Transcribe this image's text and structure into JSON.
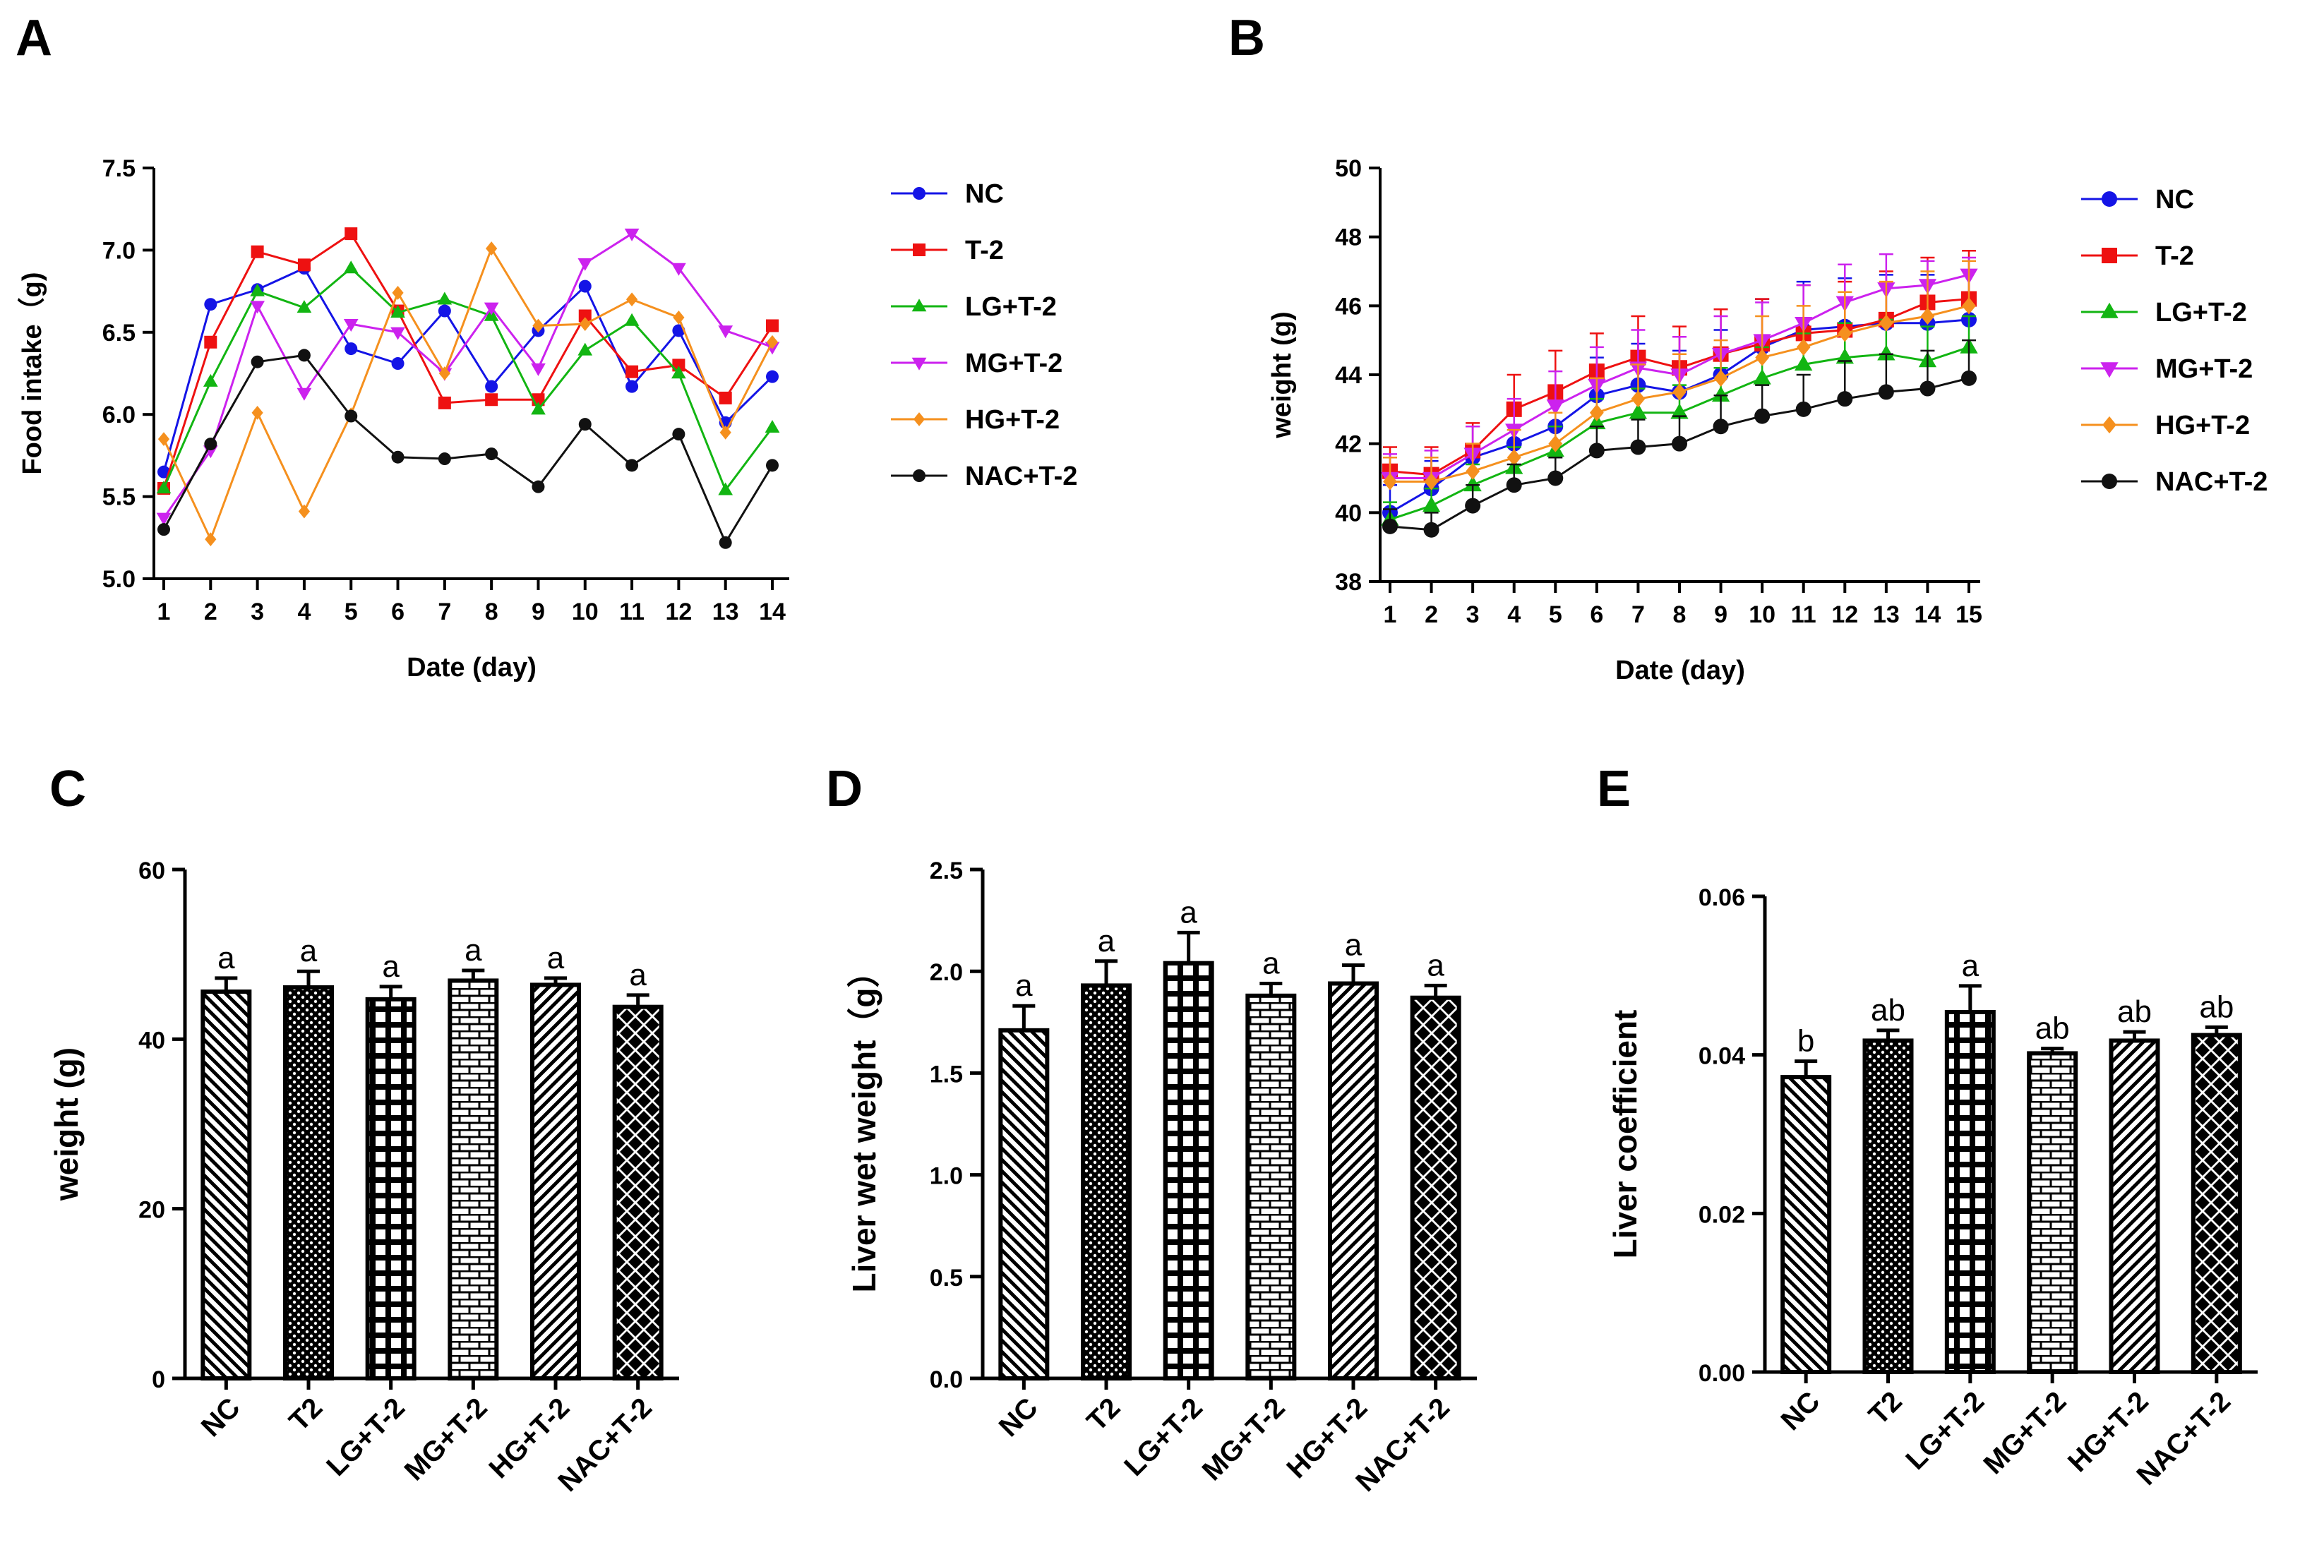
{
  "chart_data": [
    {
      "panel": "A",
      "type": "line",
      "xlabel": "Date (day)",
      "ylabel": "Food intake（g)",
      "ylim": [
        5.0,
        7.5
      ],
      "yticks": [
        "5.0",
        "5.5",
        "6.0",
        "6.5",
        "7.0",
        "7.5"
      ],
      "x": [
        1,
        2,
        3,
        4,
        5,
        6,
        7,
        8,
        9,
        10,
        11,
        12,
        13,
        14
      ],
      "series": [
        {
          "name": "NC",
          "color": "#1414e6",
          "marker": "circle",
          "values": [
            5.65,
            6.67,
            6.76,
            6.89,
            6.4,
            6.31,
            6.63,
            6.17,
            6.51,
            6.78,
            6.17,
            6.51,
            5.95,
            6.23
          ]
        },
        {
          "name": "T-2",
          "color": "#ee1111",
          "marker": "square",
          "values": [
            5.55,
            6.44,
            6.99,
            6.91,
            7.1,
            6.63,
            6.07,
            6.09,
            6.09,
            6.6,
            6.26,
            6.3,
            6.1,
            6.54
          ]
        },
        {
          "name": "LG+T-2",
          "color": "#12b512",
          "marker": "triangle-up",
          "values": [
            5.55,
            6.2,
            6.75,
            6.65,
            6.89,
            6.62,
            6.7,
            6.6,
            6.03,
            6.39,
            6.57,
            6.25,
            5.54,
            5.92
          ]
        },
        {
          "name": "MG+T-2",
          "color": "#cc22ee",
          "marker": "triangle-down",
          "values": [
            5.37,
            5.78,
            6.66,
            6.13,
            6.55,
            6.5,
            6.25,
            6.65,
            6.28,
            6.92,
            7.1,
            6.89,
            6.51,
            6.41
          ]
        },
        {
          "name": "HG+T-2",
          "color": "#f5901e",
          "marker": "diamond",
          "values": [
            5.85,
            5.24,
            6.01,
            5.41,
            6.0,
            6.74,
            6.25,
            7.01,
            6.54,
            6.55,
            6.7,
            6.59,
            5.89,
            6.44
          ]
        },
        {
          "name": "NAC+T-2",
          "color": "#111111",
          "marker": "circle",
          "values": [
            5.3,
            5.82,
            6.32,
            6.36,
            5.99,
            5.74,
            5.73,
            5.76,
            5.56,
            5.94,
            5.69,
            5.88,
            5.22,
            5.69
          ]
        }
      ]
    },
    {
      "panel": "B",
      "type": "line",
      "xlabel": "Date (day)",
      "ylabel": "weight (g)",
      "ylim": [
        38,
        50
      ],
      "yticks": [
        "38",
        "40",
        "42",
        "44",
        "46",
        "48",
        "50"
      ],
      "x": [
        1,
        2,
        3,
        4,
        5,
        6,
        7,
        8,
        9,
        10,
        11,
        12,
        13,
        14,
        15
      ],
      "series": [
        {
          "name": "NC",
          "color": "#1414e6",
          "marker": "circle",
          "values": [
            40.0,
            40.7,
            41.6,
            42.0,
            42.5,
            43.4,
            43.7,
            43.5,
            44.0,
            44.8,
            45.3,
            45.4,
            45.5,
            45.5,
            45.6
          ],
          "errors": [
            0.8,
            0.8,
            0.9,
            1.0,
            1.1,
            1.1,
            1.2,
            1.2,
            1.3,
            1.4,
            1.4,
            1.4,
            1.4,
            1.4,
            1.4
          ]
        },
        {
          "name": "T-2",
          "color": "#ee1111",
          "marker": "square",
          "values": [
            41.2,
            41.1,
            41.8,
            43.0,
            43.5,
            44.1,
            44.5,
            44.2,
            44.6,
            44.9,
            45.2,
            45.3,
            45.6,
            46.1,
            46.2
          ],
          "errors": [
            0.7,
            0.8,
            0.8,
            1.0,
            1.2,
            1.1,
            1.2,
            1.2,
            1.3,
            1.3,
            1.4,
            1.4,
            1.4,
            1.3,
            1.4
          ]
        },
        {
          "name": "LG+T-2",
          "color": "#12b512",
          "marker": "triangle-up",
          "values": [
            39.8,
            40.2,
            40.8,
            41.3,
            41.8,
            42.6,
            42.9,
            42.9,
            43.4,
            43.9,
            44.3,
            44.5,
            44.6,
            44.4,
            44.8
          ],
          "errors": [
            0.5,
            0.5,
            0.6,
            0.6,
            0.7,
            0.7,
            0.7,
            0.8,
            0.8,
            0.9,
            0.9,
            1.0,
            1.0,
            1.0,
            0.9
          ]
        },
        {
          "name": "MG+T-2",
          "color": "#cc22ee",
          "marker": "triangle-down",
          "values": [
            41.0,
            41.0,
            41.7,
            42.4,
            43.1,
            43.7,
            44.2,
            44.0,
            44.6,
            45.0,
            45.5,
            46.1,
            46.5,
            46.6,
            46.9
          ],
          "errors": [
            0.7,
            0.8,
            0.8,
            0.9,
            1.0,
            1.1,
            1.1,
            1.1,
            1.1,
            1.1,
            1.1,
            1.1,
            1.0,
            0.7,
            0.5
          ]
        },
        {
          "name": "HG+T-2",
          "color": "#f5901e",
          "marker": "diamond",
          "values": [
            40.9,
            40.9,
            41.2,
            41.6,
            42.0,
            42.9,
            43.3,
            43.5,
            43.9,
            44.5,
            44.8,
            45.2,
            45.5,
            45.7,
            46.0
          ],
          "errors": [
            0.7,
            0.7,
            0.8,
            0.8,
            0.9,
            1.0,
            1.0,
            1.1,
            1.1,
            1.2,
            1.2,
            1.2,
            1.2,
            1.3,
            1.3
          ]
        },
        {
          "name": "NAC+T-2",
          "color": "#111111",
          "marker": "circle",
          "values": [
            39.6,
            39.5,
            40.2,
            40.8,
            41.0,
            41.8,
            41.9,
            42.0,
            42.5,
            42.8,
            43.0,
            43.3,
            43.5,
            43.6,
            43.9
          ],
          "errors": [
            0.5,
            0.5,
            0.6,
            0.6,
            0.6,
            0.7,
            0.8,
            0.8,
            0.9,
            0.9,
            1.0,
            1.1,
            1.1,
            1.1,
            1.1
          ]
        }
      ]
    },
    {
      "panel": "C",
      "type": "bar",
      "ylabel": "weight (g)",
      "ylim": [
        0,
        60
      ],
      "yticks": [
        "0",
        "20",
        "40",
        "60"
      ],
      "categories": [
        "NC",
        "T2",
        "LG+T-2",
        "MG+T-2",
        "HG+T-2",
        "NAC+T-2"
      ],
      "values": [
        45.6,
        46.1,
        44.7,
        46.9,
        46.4,
        43.8
      ],
      "errors": [
        1.6,
        1.9,
        1.5,
        1.2,
        0.8,
        1.4
      ],
      "labels": [
        "a",
        "a",
        "a",
        "a",
        "a",
        "a"
      ]
    },
    {
      "panel": "D",
      "type": "bar",
      "ylabel": "Liver wet weight（g）",
      "ylim": [
        0.0,
        2.5
      ],
      "yticks": [
        "0.0",
        "0.5",
        "1.0",
        "1.5",
        "2.0",
        "2.5"
      ],
      "categories": [
        "NC",
        "T2",
        "LG+T-2",
        "MG+T-2",
        "HG+T-2",
        "NAC+T-2"
      ],
      "values": [
        1.71,
        1.93,
        2.04,
        1.88,
        1.94,
        1.87
      ],
      "errors": [
        0.12,
        0.12,
        0.15,
        0.06,
        0.09,
        0.06
      ],
      "labels": [
        "a",
        "a",
        "a",
        "a",
        "a",
        "a"
      ]
    },
    {
      "panel": "E",
      "type": "bar",
      "ylabel": "Liver coefficient",
      "ylim": [
        0.0,
        0.06
      ],
      "yticks": [
        "0.00",
        "0.02",
        "0.04",
        "0.06"
      ],
      "categories": [
        "NC",
        "T2",
        "LG+T-2",
        "MG+T-2",
        "HG+T-2",
        "NAC+T-2"
      ],
      "values": [
        0.0372,
        0.0418,
        0.0454,
        0.0402,
        0.0418,
        0.0425
      ],
      "errors": [
        0.002,
        0.0013,
        0.0033,
        0.0006,
        0.0011,
        0.001
      ],
      "labels": [
        "b",
        "ab",
        "a",
        "ab",
        "ab",
        "ab"
      ]
    }
  ]
}
